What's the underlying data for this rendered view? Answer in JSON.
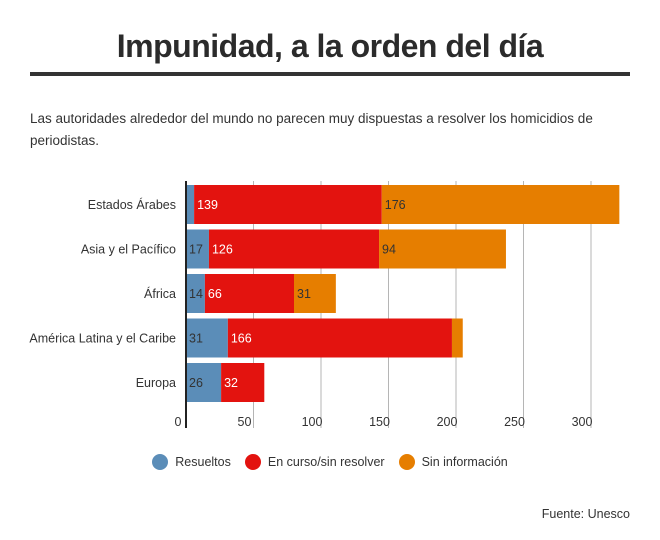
{
  "title": "Impunidad, a la orden del día",
  "subtitle": "Las autoridades alrededor del mundo no parecen muy dispuestas a resolver los homicidios de periodistas.",
  "source": "Fuente: Unesco",
  "chart_data": {
    "type": "bar",
    "orientation": "horizontal",
    "stacked": true,
    "categories": [
      "Estados Árabes",
      "Asia y el Pacífico",
      "África",
      "América Latina y el Caribe",
      "Europa"
    ],
    "series": [
      {
        "name": "Resueltos",
        "color": "#5b8db8",
        "values": [
          6,
          17,
          14,
          31,
          26
        ],
        "labels": [
          "",
          "17",
          "14",
          "31",
          "26"
        ]
      },
      {
        "name": "En curso/sin resolver",
        "color": "#e3130f",
        "values": [
          139,
          126,
          66,
          166,
          32
        ],
        "labels": [
          "139",
          "126",
          "66",
          "166",
          "32"
        ]
      },
      {
        "name": "Sin información",
        "color": "#e67e00",
        "values": [
          176,
          94,
          31,
          8,
          0
        ],
        "labels": [
          "176",
          "94",
          "31",
          "",
          ""
        ]
      }
    ],
    "xlim": [
      0,
      330
    ],
    "xticks": [
      0,
      50,
      100,
      150,
      200,
      250,
      300
    ],
    "grid": true,
    "legend_position": "bottom"
  }
}
